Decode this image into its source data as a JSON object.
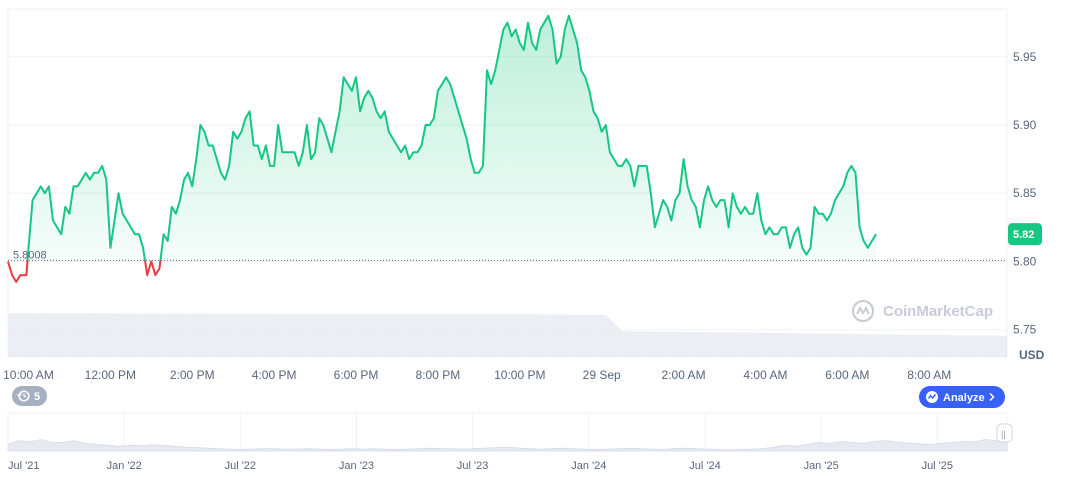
{
  "chart_data": {
    "type": "area",
    "ylabel": "",
    "xlabel": "",
    "unit_label": "USD",
    "ylim": [
      5.73,
      5.985
    ],
    "yticks": [
      5.75,
      5.8,
      5.85,
      5.9,
      5.95
    ],
    "ytick_labels": [
      "5.75",
      "5.80",
      "5.85",
      "5.90",
      "5.95"
    ],
    "xticks": [
      {
        "t": 0.5,
        "label": "10:00 AM"
      },
      {
        "t": 2.5,
        "label": "12:00 PM"
      },
      {
        "t": 4.5,
        "label": "2:00 PM"
      },
      {
        "t": 6.5,
        "label": "4:00 PM"
      },
      {
        "t": 8.5,
        "label": "6:00 PM"
      },
      {
        "t": 10.5,
        "label": "8:00 PM"
      },
      {
        "t": 12.5,
        "label": "10:00 PM"
      },
      {
        "t": 14.5,
        "label": "29 Sep"
      },
      {
        "t": 16.5,
        "label": "2:00 AM"
      },
      {
        "t": 18.5,
        "label": "4:00 AM"
      },
      {
        "t": 20.5,
        "label": "6:00 AM"
      },
      {
        "t": 22.5,
        "label": "8:00 AM"
      }
    ],
    "xlim": [
      0,
      24.4
    ],
    "reference_value": 5.8008,
    "reference_label": "5.8008",
    "current_value": 5.82,
    "current_label": "5.82",
    "colors": {
      "up": "#16c784",
      "down": "#ea3943",
      "badge": "#16c784",
      "button": "#3861fb",
      "history": "#a6b0c3"
    },
    "series": [
      {
        "values": [
          [
            0,
            5.8
          ],
          [
            0.1,
            5.79
          ],
          [
            0.2,
            5.785
          ],
          [
            0.3,
            5.79
          ],
          [
            0.45,
            5.79
          ],
          [
            0.5,
            5.81
          ],
          [
            0.6,
            5.845
          ],
          [
            0.7,
            5.85
          ],
          [
            0.8,
            5.855
          ],
          [
            0.9,
            5.85
          ],
          [
            1.0,
            5.855
          ],
          [
            1.1,
            5.83
          ],
          [
            1.2,
            5.825
          ],
          [
            1.3,
            5.82
          ],
          [
            1.4,
            5.84
          ],
          [
            1.5,
            5.835
          ],
          [
            1.6,
            5.855
          ],
          [
            1.7,
            5.855
          ],
          [
            1.8,
            5.86
          ],
          [
            1.9,
            5.865
          ],
          [
            2.0,
            5.86
          ],
          [
            2.1,
            5.865
          ],
          [
            2.2,
            5.865
          ],
          [
            2.3,
            5.87
          ],
          [
            2.4,
            5.86
          ],
          [
            2.5,
            5.81
          ],
          [
            2.6,
            5.83
          ],
          [
            2.7,
            5.85
          ],
          [
            2.8,
            5.835
          ],
          [
            2.9,
            5.83
          ],
          [
            3.0,
            5.825
          ],
          [
            3.1,
            5.82
          ],
          [
            3.2,
            5.82
          ],
          [
            3.3,
            5.81
          ],
          [
            3.4,
            5.79
          ],
          [
            3.5,
            5.8
          ],
          [
            3.6,
            5.79
          ],
          [
            3.7,
            5.795
          ],
          [
            3.8,
            5.82
          ],
          [
            3.9,
            5.815
          ],
          [
            4.0,
            5.84
          ],
          [
            4.1,
            5.835
          ],
          [
            4.2,
            5.845
          ],
          [
            4.3,
            5.86
          ],
          [
            4.4,
            5.865
          ],
          [
            4.5,
            5.855
          ],
          [
            4.6,
            5.875
          ],
          [
            4.7,
            5.9
          ],
          [
            4.8,
            5.895
          ],
          [
            4.9,
            5.885
          ],
          [
            5.0,
            5.885
          ],
          [
            5.1,
            5.875
          ],
          [
            5.2,
            5.865
          ],
          [
            5.3,
            5.86
          ],
          [
            5.4,
            5.87
          ],
          [
            5.5,
            5.895
          ],
          [
            5.6,
            5.89
          ],
          [
            5.7,
            5.895
          ],
          [
            5.8,
            5.905
          ],
          [
            5.9,
            5.91
          ],
          [
            6.0,
            5.885
          ],
          [
            6.1,
            5.885
          ],
          [
            6.2,
            5.875
          ],
          [
            6.3,
            5.885
          ],
          [
            6.4,
            5.87
          ],
          [
            6.5,
            5.87
          ],
          [
            6.6,
            5.9
          ],
          [
            6.7,
            5.88
          ],
          [
            6.8,
            5.88
          ],
          [
            6.9,
            5.88
          ],
          [
            7.0,
            5.88
          ],
          [
            7.1,
            5.87
          ],
          [
            7.2,
            5.88
          ],
          [
            7.3,
            5.9
          ],
          [
            7.4,
            5.875
          ],
          [
            7.5,
            5.88
          ],
          [
            7.6,
            5.905
          ],
          [
            7.7,
            5.9
          ],
          [
            7.8,
            5.89
          ],
          [
            7.9,
            5.88
          ],
          [
            8.0,
            5.895
          ],
          [
            8.1,
            5.91
          ],
          [
            8.2,
            5.935
          ],
          [
            8.3,
            5.93
          ],
          [
            8.4,
            5.925
          ],
          [
            8.5,
            5.935
          ],
          [
            8.6,
            5.91
          ],
          [
            8.7,
            5.92
          ],
          [
            8.8,
            5.925
          ],
          [
            8.9,
            5.92
          ],
          [
            9.0,
            5.91
          ],
          [
            9.1,
            5.905
          ],
          [
            9.2,
            5.91
          ],
          [
            9.3,
            5.895
          ],
          [
            9.4,
            5.89
          ],
          [
            9.5,
            5.885
          ],
          [
            9.6,
            5.88
          ],
          [
            9.7,
            5.885
          ],
          [
            9.8,
            5.875
          ],
          [
            9.9,
            5.88
          ],
          [
            10.0,
            5.88
          ],
          [
            10.1,
            5.885
          ],
          [
            10.2,
            5.9
          ],
          [
            10.3,
            5.9
          ],
          [
            10.4,
            5.905
          ],
          [
            10.5,
            5.925
          ],
          [
            10.6,
            5.93
          ],
          [
            10.7,
            5.935
          ],
          [
            10.8,
            5.93
          ],
          [
            10.9,
            5.92
          ],
          [
            11.0,
            5.91
          ],
          [
            11.1,
            5.9
          ],
          [
            11.2,
            5.89
          ],
          [
            11.3,
            5.875
          ],
          [
            11.4,
            5.865
          ],
          [
            11.5,
            5.865
          ],
          [
            11.6,
            5.87
          ],
          [
            11.7,
            5.94
          ],
          [
            11.8,
            5.93
          ],
          [
            11.9,
            5.94
          ],
          [
            12.0,
            5.955
          ],
          [
            12.1,
            5.97
          ],
          [
            12.2,
            5.975
          ],
          [
            12.3,
            5.965
          ],
          [
            12.4,
            5.97
          ],
          [
            12.5,
            5.96
          ],
          [
            12.6,
            5.955
          ],
          [
            12.7,
            5.975
          ],
          [
            12.8,
            5.96
          ],
          [
            12.9,
            5.955
          ],
          [
            13.0,
            5.97
          ],
          [
            13.1,
            5.975
          ],
          [
            13.2,
            5.98
          ],
          [
            13.3,
            5.97
          ],
          [
            13.4,
            5.945
          ],
          [
            13.5,
            5.95
          ],
          [
            13.6,
            5.97
          ],
          [
            13.7,
            5.98
          ],
          [
            13.8,
            5.97
          ],
          [
            13.9,
            5.96
          ],
          [
            14.0,
            5.94
          ],
          [
            14.1,
            5.935
          ],
          [
            14.2,
            5.925
          ],
          [
            14.3,
            5.91
          ],
          [
            14.4,
            5.905
          ],
          [
            14.5,
            5.895
          ],
          [
            14.6,
            5.9
          ],
          [
            14.7,
            5.88
          ],
          [
            14.8,
            5.875
          ],
          [
            14.9,
            5.87
          ],
          [
            15.0,
            5.87
          ],
          [
            15.1,
            5.875
          ],
          [
            15.2,
            5.87
          ],
          [
            15.3,
            5.855
          ],
          [
            15.4,
            5.87
          ],
          [
            15.5,
            5.87
          ],
          [
            15.6,
            5.87
          ],
          [
            15.7,
            5.85
          ],
          [
            15.8,
            5.825
          ],
          [
            15.9,
            5.835
          ],
          [
            16.0,
            5.845
          ],
          [
            16.1,
            5.84
          ],
          [
            16.2,
            5.83
          ],
          [
            16.3,
            5.845
          ],
          [
            16.4,
            5.85
          ],
          [
            16.5,
            5.875
          ],
          [
            16.6,
            5.855
          ],
          [
            16.7,
            5.845
          ],
          [
            16.8,
            5.84
          ],
          [
            16.9,
            5.825
          ],
          [
            17.0,
            5.845
          ],
          [
            17.1,
            5.855
          ],
          [
            17.2,
            5.845
          ],
          [
            17.3,
            5.84
          ],
          [
            17.4,
            5.845
          ],
          [
            17.5,
            5.845
          ],
          [
            17.6,
            5.825
          ],
          [
            17.7,
            5.85
          ],
          [
            17.8,
            5.84
          ],
          [
            17.9,
            5.835
          ],
          [
            18.0,
            5.84
          ],
          [
            18.1,
            5.835
          ],
          [
            18.2,
            5.835
          ],
          [
            18.3,
            5.85
          ],
          [
            18.4,
            5.83
          ],
          [
            18.5,
            5.82
          ],
          [
            18.6,
            5.825
          ],
          [
            18.7,
            5.82
          ],
          [
            18.8,
            5.82
          ],
          [
            18.9,
            5.825
          ],
          [
            19.0,
            5.825
          ],
          [
            19.1,
            5.81
          ],
          [
            19.2,
            5.82
          ],
          [
            19.3,
            5.825
          ],
          [
            19.4,
            5.81
          ],
          [
            19.5,
            5.805
          ],
          [
            19.6,
            5.81
          ],
          [
            19.7,
            5.84
          ],
          [
            19.8,
            5.835
          ],
          [
            19.9,
            5.835
          ],
          [
            20.0,
            5.83
          ],
          [
            20.1,
            5.835
          ],
          [
            20.2,
            5.845
          ],
          [
            20.3,
            5.85
          ],
          [
            20.4,
            5.855
          ],
          [
            20.5,
            5.865
          ],
          [
            20.6,
            5.87
          ],
          [
            20.7,
            5.865
          ],
          [
            20.8,
            5.825
          ],
          [
            20.9,
            5.815
          ],
          [
            21.0,
            5.81
          ],
          [
            21.1,
            5.815
          ],
          [
            21.2,
            5.82
          ]
        ]
      }
    ],
    "volume": [
      {
        "t": 0,
        "v": 0.93
      },
      {
        "t": 12.5,
        "v": 0.91
      },
      {
        "t": 14.6,
        "v": 0.9
      },
      {
        "t": 15.0,
        "v": 0.55
      },
      {
        "t": 24.4,
        "v": 0.45
      }
    ]
  },
  "navigator": {
    "labels": [
      "Jul '21",
      "Jan '22",
      "Jul '22",
      "Jan '23",
      "Jul '23",
      "Jan '24",
      "Jul '24",
      "Jan '25",
      "Jul '25"
    ],
    "series": [
      0.35,
      0.55,
      0.5,
      0.6,
      0.45,
      0.45,
      0.55,
      0.4,
      0.35,
      0.3,
      0.25,
      0.3,
      0.28,
      0.32,
      0.3,
      0.25,
      0.2,
      0.18,
      0.15,
      0.12,
      0.1,
      0.08,
      0.1,
      0.12,
      0.12,
      0.1,
      0.1,
      0.12,
      0.1,
      0.08,
      0.1,
      0.12,
      0.1,
      0.12,
      0.1,
      0.08,
      0.1,
      0.12,
      0.15,
      0.12,
      0.12,
      0.1,
      0.12,
      0.15,
      0.18,
      0.2,
      0.16,
      0.12,
      0.1,
      0.12,
      0.15,
      0.12,
      0.1,
      0.08,
      0.1,
      0.12,
      0.14,
      0.12,
      0.1,
      0.08,
      0.12,
      0.15,
      0.12,
      0.1,
      0.08,
      0.06,
      0.08,
      0.1,
      0.12,
      0.2,
      0.3,
      0.25,
      0.35,
      0.45,
      0.4,
      0.5,
      0.45,
      0.4,
      0.5,
      0.55,
      0.48,
      0.42,
      0.38,
      0.35,
      0.4,
      0.45,
      0.5,
      0.48,
      0.6,
      0.55,
      0.5
    ]
  },
  "watermark": {
    "text": "CoinMarketCap"
  },
  "controls": {
    "history_count": "5",
    "analyze_label": "Analyze",
    "handle_glyph": "||"
  }
}
